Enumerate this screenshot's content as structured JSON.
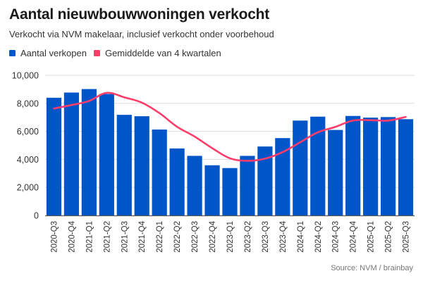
{
  "header": {
    "title": "Aantal nieuwbouwwoningen verkocht",
    "subtitle": "Verkocht via NVM makelaar, inclusief verkocht onder voorbehoud"
  },
  "legend": [
    {
      "label": "Aantal verkopen",
      "color": "#0055c8"
    },
    {
      "label": "Gemiddelde van 4 kwartalen",
      "color": "#ff3d6a"
    }
  ],
  "source": "Source: NVM / brainbay",
  "chart_data": {
    "type": "bar",
    "title": "Aantal nieuwbouwwoningen verkocht",
    "subtitle": "Verkocht via NVM makelaar, inclusief verkocht onder voorbehoud",
    "xlabel": "",
    "ylabel": "",
    "ylim": [
      0,
      10000
    ],
    "yticks": [
      0,
      2000,
      4000,
      6000,
      8000,
      10000
    ],
    "ytick_labels": [
      "0",
      "2,000",
      "4,000",
      "6,000",
      "8,000",
      "10,000"
    ],
    "grid": true,
    "legend_position": "top-left",
    "categories": [
      "2020-Q3",
      "2020-Q4",
      "2021-Q1",
      "2021-Q2",
      "2021-Q3",
      "2021-Q4",
      "2022-Q1",
      "2022-Q2",
      "2022-Q3",
      "2022-Q4",
      "2023-Q1",
      "2023-Q2",
      "2023-Q3",
      "2023-Q4",
      "2024-Q1",
      "2024-Q2",
      "2024-Q3",
      "2024-Q4",
      "2025-Q1",
      "2025-Q2",
      "2025-Q3"
    ],
    "series": [
      {
        "name": "Aantal verkopen",
        "type": "bar",
        "color": "#0055c8",
        "values": [
          8400,
          8770,
          9020,
          8670,
          7180,
          7080,
          6130,
          4780,
          4250,
          3580,
          3380,
          4250,
          4920,
          5520,
          6770,
          7050,
          6100,
          7100,
          6980,
          7020,
          6870
        ]
      },
      {
        "name": "Gemiddelde van 4 kwartalen",
        "type": "line",
        "color": "#ff3d6a",
        "values": [
          7630,
          7880,
          8170,
          8750,
          8430,
          8050,
          7300,
          6330,
          5630,
          4800,
          4080,
          3900,
          4050,
          4520,
          5220,
          5930,
          6320,
          6770,
          6800,
          6770,
          7030
        ]
      }
    ],
    "source": "Source: NVM / brainbay"
  }
}
